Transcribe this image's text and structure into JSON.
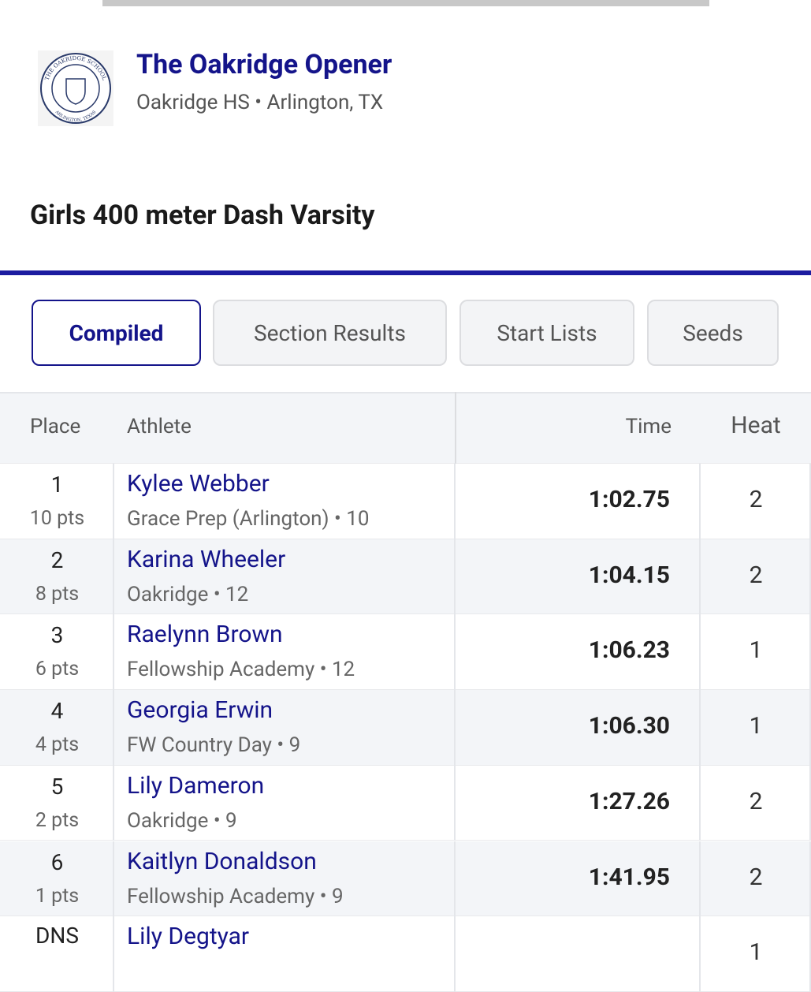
{
  "header": {
    "title": "The Oakridge Opener",
    "subtitle": "Oakridge HS • Arlington, TX",
    "logo": {
      "top": "THE OAKRIDGE SCHOOL",
      "bottom": "ARLINGTON, TEXAS"
    }
  },
  "event": {
    "title": "Girls 400 meter Dash Varsity"
  },
  "tabs": [
    "Compiled",
    "Section Results",
    "Start Lists",
    "Seeds"
  ],
  "table": {
    "headers": [
      "Place",
      "Athlete",
      "Time",
      "Heat"
    ],
    "rows": [
      {
        "place": "1",
        "points": "10 pts",
        "name": "Kylee Webber",
        "affiliation": "Grace Prep (Arlington) • 10",
        "time": "1:02.75",
        "heat": "2"
      },
      {
        "place": "2",
        "points": "8 pts",
        "name": "Karina Wheeler",
        "affiliation": "Oakridge • 12",
        "time": "1:04.15",
        "heat": "2"
      },
      {
        "place": "3",
        "points": "6 pts",
        "name": "Raelynn Brown",
        "affiliation": "Fellowship Academy • 12",
        "time": "1:06.23",
        "heat": "1"
      },
      {
        "place": "4",
        "points": "4 pts",
        "name": "Georgia Erwin",
        "affiliation": "FW Country Day • 9",
        "time": "1:06.30",
        "heat": "1"
      },
      {
        "place": "5",
        "points": "2 pts",
        "name": "Lily Dameron",
        "affiliation": "Oakridge • 9",
        "time": "1:27.26",
        "heat": "2"
      },
      {
        "place": "6",
        "points": "1 pts",
        "name": "Kaitlyn Donaldson",
        "affiliation": "Fellowship Academy • 9",
        "time": "1:41.95",
        "heat": "2"
      },
      {
        "place": "DNS",
        "name": "Lily Degtyar",
        "heat": "1"
      }
    ]
  }
}
